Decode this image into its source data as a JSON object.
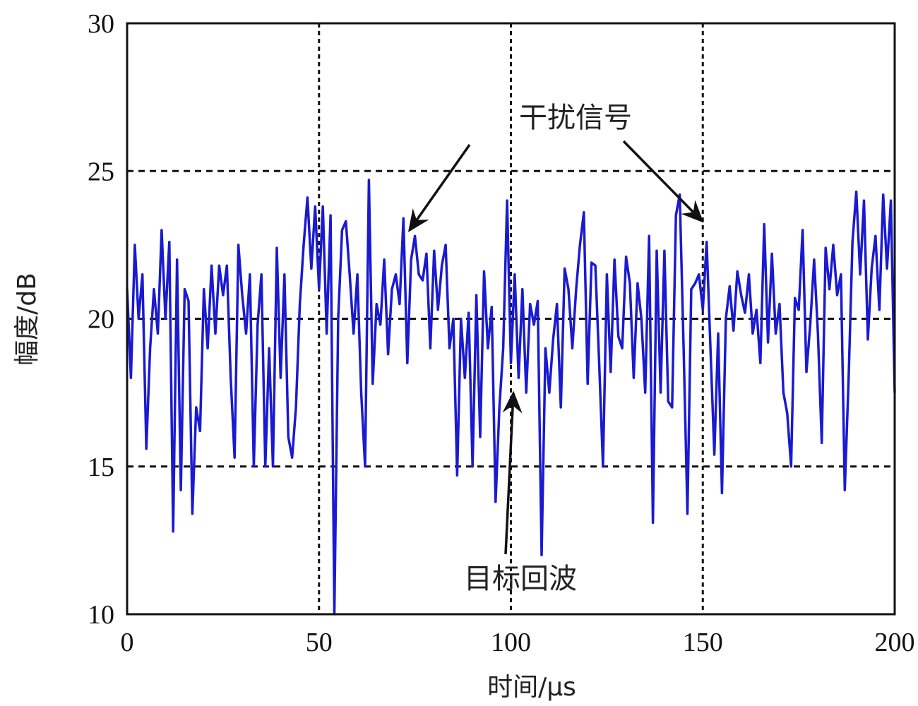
{
  "chart_data": {
    "type": "line",
    "title": "",
    "xlabel": "时间/μs",
    "ylabel": "幅度/dB",
    "xlim": [
      0,
      200
    ],
    "ylim": [
      10,
      30
    ],
    "xticks": [
      0,
      50,
      100,
      150,
      200
    ],
    "yticks": [
      10,
      15,
      20,
      25,
      30
    ],
    "grid": true,
    "grid_style": "dashed",
    "line_color": "#1a1ad0",
    "series": [
      {
        "x_start": 0,
        "x_step": 1,
        "values": [
          21,
          18,
          22.5,
          20,
          21.5,
          15.6,
          19,
          21,
          19.5,
          23,
          20,
          22.6,
          12.8,
          22,
          14.2,
          21,
          20.6,
          13.4,
          17,
          16.2,
          21,
          19,
          21.8,
          19.5,
          21.8,
          20.8,
          21.8,
          18,
          15.3,
          22.5,
          20.8,
          19.5,
          21.5,
          15,
          19.8,
          21.5,
          15,
          19,
          15,
          22.4,
          18,
          21.5,
          16,
          15.3,
          17,
          20.5,
          22.5,
          24.1,
          21.7,
          23.8,
          21,
          23.8,
          19.5,
          23.5,
          10,
          20,
          23,
          23.3,
          21.5,
          19.5,
          21.5,
          17.5,
          15,
          24.7,
          17.8,
          20.5,
          19.8,
          22,
          18.8,
          21,
          21.5,
          20.5,
          23.4,
          18.5,
          22,
          22.8,
          21.5,
          21.3,
          22.2,
          19,
          22.3,
          20.3,
          21.8,
          22.5,
          19,
          20,
          14.7,
          20,
          18,
          20.2,
          15,
          20.8,
          16,
          21.6,
          19,
          20.4,
          13.8,
          17,
          19,
          24,
          18.5,
          21.5,
          18,
          21,
          17.5,
          20.5,
          19.8,
          20.6,
          12,
          19,
          17.5,
          19.3,
          20.5,
          17,
          21.7,
          21,
          19,
          21,
          22.5,
          23.6,
          17.8,
          21.9,
          21.8,
          18.5,
          15,
          21.5,
          18.2,
          22,
          19.4,
          19,
          22.1,
          21.2,
          18,
          21.2,
          20,
          17.5,
          22.8,
          13.1,
          22.3,
          17.5,
          22.3,
          17.2,
          17,
          23.5,
          24.2,
          19,
          13.4,
          21,
          21.2,
          21.5,
          20.3,
          22.6,
          19,
          15.4,
          19.5,
          14.1,
          20,
          21.1,
          19.6,
          21.6,
          20.8,
          20.2,
          21.5,
          19.5,
          20.3,
          18.5,
          23.2,
          19.2,
          22.2,
          19.5,
          20.5,
          17.5,
          16.8,
          15,
          20.7,
          20.3,
          23,
          18.2,
          19.8,
          22,
          19.5,
          15.8,
          22.4,
          21,
          22.5,
          20.8,
          21.5,
          14.2,
          18,
          22.6,
          24.3,
          21.5,
          24,
          19.3,
          21.7,
          22.8,
          20.3,
          24.2,
          21.7,
          24,
          17.5
        ]
      }
    ],
    "annotations": [
      {
        "text": "干扰信号",
        "points_to_x": [
          72,
          151
        ],
        "points_to_y": [
          23,
          23
        ]
      },
      {
        "text": "目标回波",
        "points_to_x": [
          101
        ],
        "points_to_y": [
          17.5
        ]
      }
    ]
  }
}
